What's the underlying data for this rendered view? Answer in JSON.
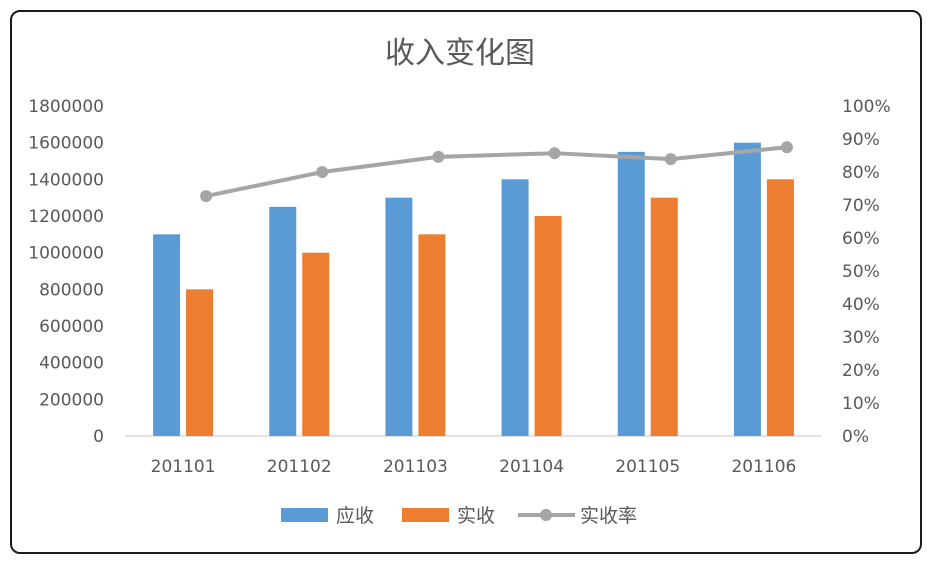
{
  "chart_data": {
    "type": "bar",
    "title": "收入变化图",
    "categories": [
      "201101",
      "201102",
      "201103",
      "201104",
      "201105",
      "201106"
    ],
    "series": [
      {
        "name": "应收",
        "type": "bar",
        "axis": "left",
        "color": "#5b9bd5",
        "values": [
          1100000,
          1250000,
          1300000,
          1400000,
          1550000,
          1600000
        ]
      },
      {
        "name": "实收",
        "type": "bar",
        "axis": "left",
        "color": "#ed7d31",
        "values": [
          800000,
          1000000,
          1100000,
          1200000,
          1300000,
          1400000
        ]
      },
      {
        "name": "实收率",
        "type": "line",
        "axis": "right",
        "color": "#a5a5a5",
        "values": [
          0.727,
          0.8,
          0.846,
          0.857,
          0.839,
          0.875
        ]
      }
    ],
    "y_left": {
      "min": 0,
      "max": 1800000,
      "step": 200000,
      "ticks": [
        "0",
        "200000",
        "400000",
        "600000",
        "800000",
        "1000000",
        "1200000",
        "1400000",
        "1600000",
        "1800000"
      ]
    },
    "y_right": {
      "min": 0,
      "max": 1,
      "step": 0.1,
      "ticks": [
        "0%",
        "10%",
        "20%",
        "30%",
        "40%",
        "50%",
        "60%",
        "70%",
        "80%",
        "90%",
        "100%"
      ]
    },
    "grid": false,
    "legend_position": "bottom"
  }
}
